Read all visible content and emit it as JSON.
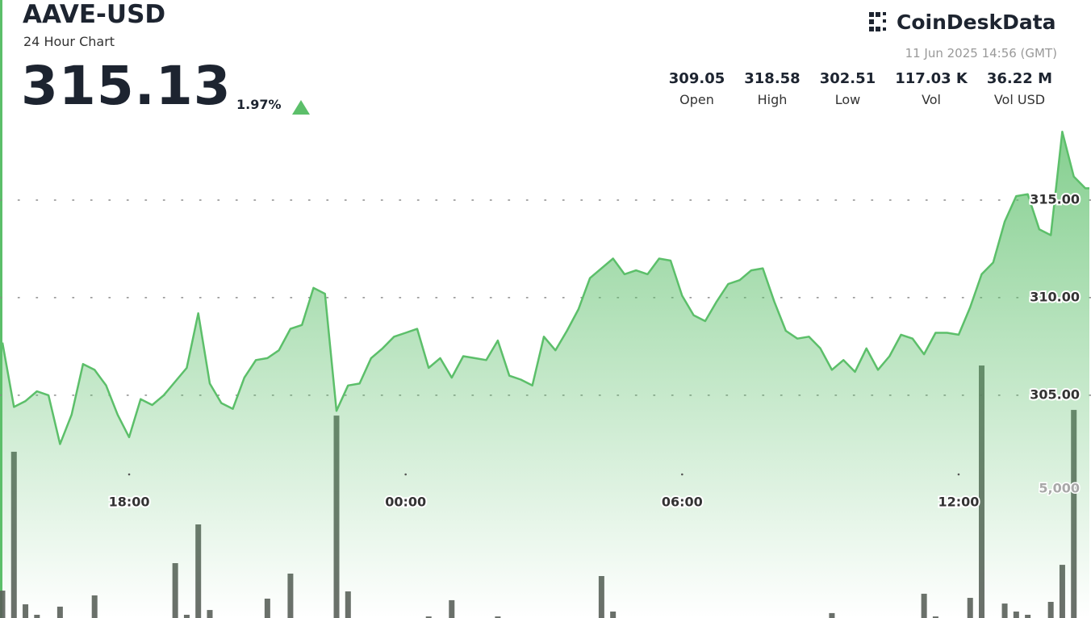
{
  "header": {
    "symbol": "AAVE-USD",
    "subtitle": "24 Hour Chart",
    "price": "315.13",
    "change": "1.97%",
    "brand": "CoinDeskData",
    "timestamp": "11 Jun 2025 14:56 (GMT)",
    "stats": [
      {
        "value": "309.05",
        "label": "Open"
      },
      {
        "value": "318.58",
        "label": "High"
      },
      {
        "value": "302.51",
        "label": "Low"
      },
      {
        "value": "117.03 K",
        "label": "Vol"
      },
      {
        "value": "36.22 M",
        "label": "Vol USD"
      }
    ]
  },
  "chart_data": {
    "type": "line",
    "categories": [
      null,
      null,
      null,
      null,
      null,
      null,
      null,
      null,
      null,
      null,
      null,
      "18:00",
      null,
      null,
      null,
      null,
      null,
      null,
      null,
      null,
      null,
      null,
      null,
      null,
      null,
      null,
      null,
      null,
      null,
      null,
      null,
      null,
      null,
      null,
      null,
      "00:00",
      null,
      null,
      null,
      null,
      null,
      null,
      null,
      null,
      null,
      null,
      null,
      null,
      null,
      null,
      null,
      null,
      null,
      null,
      null,
      null,
      null,
      null,
      null,
      "06:00",
      null,
      null,
      null,
      null,
      null,
      null,
      null,
      null,
      null,
      null,
      null,
      null,
      null,
      null,
      null,
      null,
      null,
      null,
      null,
      null,
      null,
      null,
      null,
      "12:00",
      null,
      null,
      null,
      null,
      null,
      null,
      null,
      null,
      null,
      null,
      null
    ],
    "series": [
      {
        "type": "line",
        "color": "#5cbf6a",
        "values": [
          307.7,
          304.4,
          304.7,
          305.2,
          305.0,
          302.5,
          304.0,
          306.6,
          306.3,
          305.5,
          304.0,
          302.85,
          304.8,
          304.5,
          305.0,
          305.7,
          306.4,
          309.2,
          305.6,
          304.6,
          304.3,
          305.9,
          306.8,
          306.9,
          307.3,
          308.4,
          308.6,
          310.5,
          310.2,
          304.2,
          305.5,
          305.6,
          306.9,
          307.4,
          308.0,
          308.2,
          308.4,
          306.4,
          306.9,
          305.9,
          307.0,
          306.9,
          306.8,
          307.8,
          306.0,
          305.8,
          305.5,
          308.0,
          307.3,
          308.3,
          309.4,
          311.0,
          311.5,
          312.0,
          311.2,
          311.4,
          311.2,
          312.0,
          311.9,
          310.1,
          309.1,
          308.8,
          309.8,
          310.7,
          310.9,
          311.4,
          311.5,
          309.8,
          308.3,
          307.9,
          308.0,
          307.4,
          306.3,
          306.8,
          306.2,
          307.4,
          306.3,
          307.0,
          308.1,
          307.9,
          307.1,
          308.2,
          308.2,
          308.1,
          309.5,
          311.2,
          311.8,
          313.9,
          315.2,
          315.3,
          313.5,
          313.2,
          318.5,
          316.2,
          315.6
        ]
      },
      {
        "type": "bar",
        "axis": "y2",
        "color": "#5a5f5a",
        "values": [
          1060,
          6440,
          530,
          125,
          null,
          440,
          null,
          null,
          875,
          null,
          null,
          null,
          null,
          null,
          null,
          2125,
          125,
          3625,
          310,
          null,
          null,
          null,
          null,
          750,
          null,
          1720,
          null,
          null,
          null,
          7840,
          1030,
          null,
          null,
          null,
          null,
          null,
          null,
          60,
          null,
          690,
          null,
          null,
          null,
          60,
          null,
          null,
          null,
          null,
          null,
          null,
          null,
          null,
          1625,
          250,
          null,
          null,
          null,
          null,
          null,
          null,
          null,
          null,
          null,
          null,
          null,
          null,
          null,
          null,
          null,
          null,
          null,
          null,
          190,
          null,
          null,
          null,
          null,
          null,
          null,
          null,
          940,
          60,
          null,
          null,
          780,
          9780,
          null,
          560,
          250,
          125,
          null,
          625,
          2060,
          8060,
          null
        ]
      }
    ],
    "ylim": [
      294,
      320
    ],
    "yticks": [
      {
        "value": 305,
        "label": "305.00"
      },
      {
        "value": 310,
        "label": "310.00"
      },
      {
        "value": 315,
        "label": "315.00"
      }
    ],
    "y2lim": [
      0,
      15000
    ],
    "y2ticks": [
      {
        "value": 5000,
        "label": "5,000"
      }
    ],
    "grid": true
  }
}
